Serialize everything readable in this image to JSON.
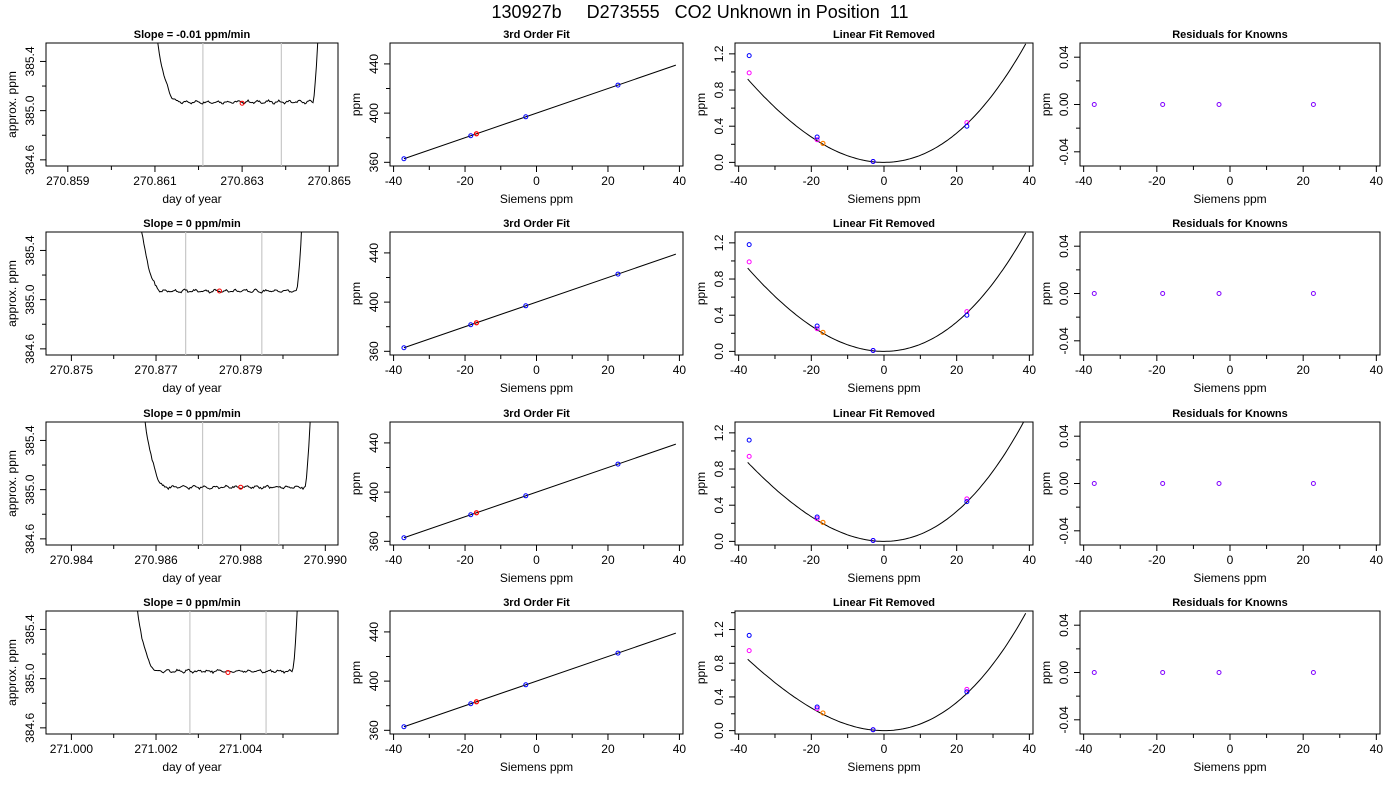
{
  "main_title": "130927b     D273555   CO2 Unknown in Position  11",
  "colors": {
    "line": "#000000",
    "window_line": "#c8c8c8",
    "mean_point": "#ff0000",
    "known_point": "#0000ff",
    "fit_point": "#ff00ff",
    "unknown_point": "#ff8000",
    "residual_point": "#8000ff"
  },
  "chart_data": [
    {
      "type": "line",
      "title": "Slope =  -0.01  ppm/min",
      "xlabel": "day of year",
      "ylabel": "approx. ppm",
      "x_ticks": [
        "270.859",
        "270.861",
        "270.863",
        "270.865"
      ],
      "y_ticks": [
        "384.6",
        "385.0",
        "385.4"
      ],
      "xlim": [
        270.8585,
        270.8652
      ],
      "ylim": [
        384.55,
        385.55
      ],
      "window": [
        270.8621,
        270.8639
      ],
      "trace": {
        "start": 270.8609,
        "end": 270.8648,
        "plateau": 385.07,
        "amp": 0.015
      },
      "mean_point": {
        "x": 270.863,
        "y": 385.06
      }
    },
    {
      "type": "scatter",
      "title": "3rd Order Fit",
      "xlabel": "Siemens ppm",
      "ylabel": "ppm",
      "x_ticks": [
        "-40",
        "-20",
        "0",
        "20",
        "40"
      ],
      "y_ticks": [
        "360",
        "400",
        "440"
      ],
      "xlim": [
        -41,
        41
      ],
      "ylim": [
        357,
        457
      ],
      "knowns": {
        "x": [
          -37.1,
          -18.4,
          -3.0,
          22.8
        ],
        "y": [
          362.9,
          381.6,
          397.0,
          422.8
        ]
      },
      "unknown": {
        "x": [
          -16.8
        ],
        "y": [
          383.2
        ]
      },
      "fit_line": {
        "x": [
          -37.1,
          39.0
        ],
        "y": [
          362.9,
          439.0
        ]
      }
    },
    {
      "type": "scatter",
      "title": "Linear Fit Removed",
      "xlabel": "Siemens ppm",
      "ylabel": "ppm",
      "x_ticks": [
        "-40",
        "-20",
        "0",
        "20",
        "40"
      ],
      "y_ticks": [
        "0.0",
        "0.4",
        "0.8",
        "1.2"
      ],
      "xlim": [
        -41,
        41
      ],
      "ylim": [
        -0.04,
        1.32
      ],
      "curve": {
        "x_range": [
          -37.5,
          39.0
        ],
        "vertex": 0.0,
        "coeff": 0.000756,
        "cubic": 2.7e-06
      },
      "knowns": {
        "x": [
          -37.1,
          -18.4,
          -3.0,
          22.8
        ],
        "y": [
          1.18,
          0.28,
          0.01,
          0.4
        ]
      },
      "fit_points": {
        "x": [
          -37.1,
          -18.4,
          -3.0,
          22.8
        ],
        "y": [
          0.99,
          0.25,
          0.01,
          0.44
        ]
      },
      "unknown": {
        "x": [
          -16.8
        ],
        "y": [
          0.21
        ]
      }
    },
    {
      "type": "scatter",
      "title": "Residuals for Knowns",
      "xlabel": "Siemens ppm",
      "ylabel": "ppm",
      "x_ticks": [
        "-40",
        "-20",
        "0",
        "20",
        "40"
      ],
      "y_ticks": [
        "-0.04",
        "0.00",
        "0.04"
      ],
      "xlim": [
        -41,
        41
      ],
      "ylim": [
        -0.052,
        0.052
      ],
      "residuals": {
        "x": [
          -37.1,
          -18.4,
          -3.0,
          22.8
        ],
        "y": [
          0,
          0,
          0,
          0
        ]
      }
    },
    {
      "type": "line",
      "title": "Slope =  0  ppm/min",
      "xlabel": "day of year",
      "ylabel": "approx. ppm",
      "x_ticks": [
        "270.875",
        "270.877",
        "270.879"
      ],
      "y_ticks": [
        "384.6",
        "385.0",
        "385.4"
      ],
      "xlim": [
        270.8744,
        270.8813
      ],
      "ylim": [
        384.55,
        385.55
      ],
      "window": [
        270.8777,
        270.8795
      ],
      "trace": {
        "start": 270.8765,
        "end": 270.8805,
        "plateau": 385.07,
        "amp": 0.015
      },
      "mean_point": {
        "x": 270.8785,
        "y": 385.07
      }
    },
    {
      "type": "scatter",
      "title": "3rd Order Fit",
      "xlabel": "Siemens ppm",
      "ylabel": "ppm",
      "x_ticks": [
        "-40",
        "-20",
        "0",
        "20",
        "40"
      ],
      "y_ticks": [
        "360",
        "400",
        "440"
      ],
      "xlim": [
        -41,
        41
      ],
      "ylim": [
        357,
        457
      ],
      "knowns": {
        "x": [
          -37.1,
          -18.4,
          -3.0,
          22.8
        ],
        "y": [
          362.9,
          381.6,
          397.0,
          422.8
        ]
      },
      "unknown": {
        "x": [
          -16.8
        ],
        "y": [
          383.2
        ]
      },
      "fit_line": {
        "x": [
          -37.1,
          39.0
        ],
        "y": [
          362.9,
          439.0
        ]
      }
    },
    {
      "type": "scatter",
      "title": "Linear Fit Removed",
      "xlabel": "Siemens ppm",
      "ylabel": "ppm",
      "x_ticks": [
        "-40",
        "-20",
        "0",
        "20",
        "40"
      ],
      "y_ticks": [
        "0.0",
        "0.4",
        "0.8",
        "1.2"
      ],
      "xlim": [
        -41,
        41
      ],
      "ylim": [
        -0.04,
        1.32
      ],
      "curve": {
        "x_range": [
          -37.5,
          39.0
        ],
        "vertex": 0.0,
        "coeff": 0.000756,
        "cubic": 2.7e-06
      },
      "knowns": {
        "x": [
          -37.1,
          -18.4,
          -3.0,
          22.8
        ],
        "y": [
          1.18,
          0.28,
          0.01,
          0.4
        ]
      },
      "fit_points": {
        "x": [
          -37.1,
          -18.4,
          -3.0,
          22.8
        ],
        "y": [
          0.99,
          0.25,
          0.01,
          0.44
        ]
      },
      "unknown": {
        "x": [
          -16.8
        ],
        "y": [
          0.21
        ]
      }
    },
    {
      "type": "scatter",
      "title": "Residuals for Knowns",
      "xlabel": "Siemens ppm",
      "ylabel": "ppm",
      "x_ticks": [
        "-40",
        "-20",
        "0",
        "20",
        "40"
      ],
      "y_ticks": [
        "-0.04",
        "0.00",
        "0.04"
      ],
      "xlim": [
        -41,
        41
      ],
      "ylim": [
        -0.052,
        0.052
      ],
      "residuals": {
        "x": [
          -37.1,
          -18.4,
          -3.0,
          22.8
        ],
        "y": [
          0,
          0,
          0,
          0
        ]
      }
    },
    {
      "type": "line",
      "title": "Slope =  0  ppm/min",
      "xlabel": "day of year",
      "ylabel": "approx. ppm",
      "x_ticks": [
        "270.984",
        "270.986",
        "270.988",
        "270.990"
      ],
      "y_ticks": [
        "384.6",
        "385.0",
        "385.4"
      ],
      "xlim": [
        270.9834,
        270.9903
      ],
      "ylim": [
        384.55,
        385.55
      ],
      "window": [
        270.9871,
        270.9889
      ],
      "trace": {
        "start": 270.9856,
        "end": 270.9897,
        "plateau": 385.02,
        "amp": 0.015
      },
      "mean_point": {
        "x": 270.988,
        "y": 385.02
      }
    },
    {
      "type": "scatter",
      "title": "3rd Order Fit",
      "xlabel": "Siemens ppm",
      "ylabel": "ppm",
      "x_ticks": [
        "-40",
        "-20",
        "0",
        "20",
        "40"
      ],
      "y_ticks": [
        "360",
        "400",
        "440"
      ],
      "xlim": [
        -41,
        41
      ],
      "ylim": [
        357,
        457
      ],
      "knowns": {
        "x": [
          -37.1,
          -18.4,
          -3.0,
          22.8
        ],
        "y": [
          362.9,
          381.6,
          397.0,
          422.8
        ]
      },
      "unknown": {
        "x": [
          -16.8
        ],
        "y": [
          383.2
        ]
      },
      "fit_line": {
        "x": [
          -37.1,
          39.0
        ],
        "y": [
          362.9,
          439.0
        ]
      }
    },
    {
      "type": "scatter",
      "title": "Linear Fit Removed",
      "xlabel": "Siemens ppm",
      "ylabel": "ppm",
      "x_ticks": [
        "-40",
        "-20",
        "0",
        "20",
        "40"
      ],
      "y_ticks": [
        "0.0",
        "0.4",
        "0.8",
        "1.2"
      ],
      "xlim": [
        -41,
        41
      ],
      "ylim": [
        -0.04,
        1.32
      ],
      "curve": {
        "x_range": [
          -37.5,
          39.0
        ],
        "vertex": 0.0,
        "coeff": 0.000756,
        "cubic": 3.6e-06
      },
      "knowns": {
        "x": [
          -37.1,
          -18.4,
          -3.0,
          22.8
        ],
        "y": [
          1.12,
          0.27,
          0.01,
          0.44
        ]
      },
      "fit_points": {
        "x": [
          -37.1,
          -18.4,
          -3.0,
          22.8
        ],
        "y": [
          0.94,
          0.25,
          0.01,
          0.47
        ]
      },
      "unknown": {
        "x": [
          -16.8
        ],
        "y": [
          0.21
        ]
      }
    },
    {
      "type": "scatter",
      "title": "Residuals for Knowns",
      "xlabel": "Siemens ppm",
      "ylabel": "ppm",
      "x_ticks": [
        "-40",
        "-20",
        "0",
        "20",
        "40"
      ],
      "y_ticks": [
        "-0.04",
        "0.00",
        "0.04"
      ],
      "xlim": [
        -41,
        41
      ],
      "ylim": [
        -0.052,
        0.052
      ],
      "residuals": {
        "x": [
          -37.1,
          -18.4,
          -3.0,
          22.8
        ],
        "y": [
          0,
          0,
          0,
          0
        ]
      }
    },
    {
      "type": "line",
      "title": "Slope =  0  ppm/min",
      "xlabel": "day of year",
      "ylabel": "approx. ppm",
      "x_ticks": [
        "271.000",
        "271.002",
        "271.004"
      ],
      "y_ticks": [
        "384.6",
        "385.0",
        "385.4"
      ],
      "xlim": [
        270.9994,
        271.0063
      ],
      "ylim": [
        384.55,
        385.55
      ],
      "window": [
        271.0028,
        271.0046
      ],
      "trace": {
        "start": 271.0014,
        "end": 271.0054,
        "plateau": 385.06,
        "amp": 0.015
      },
      "mean_point": {
        "x": 271.0037,
        "y": 385.05
      }
    },
    {
      "type": "scatter",
      "title": "3rd Order Fit",
      "xlabel": "Siemens ppm",
      "ylabel": "ppm",
      "x_ticks": [
        "-40",
        "-20",
        "0",
        "20",
        "40"
      ],
      "y_ticks": [
        "360",
        "400",
        "440"
      ],
      "xlim": [
        -41,
        41
      ],
      "ylim": [
        357,
        457
      ],
      "knowns": {
        "x": [
          -37.1,
          -18.4,
          -3.0,
          22.8
        ],
        "y": [
          362.9,
          381.6,
          397.0,
          422.8
        ]
      },
      "unknown": {
        "x": [
          -16.8
        ],
        "y": [
          383.2
        ]
      },
      "fit_line": {
        "x": [
          -37.1,
          39.0
        ],
        "y": [
          362.9,
          439.0
        ]
      }
    },
    {
      "type": "scatter",
      "title": "Linear Fit Removed",
      "xlabel": "Siemens ppm",
      "ylabel": "ppm",
      "x_ticks": [
        "-40",
        "-20",
        "0",
        "20",
        "40"
      ],
      "y_ticks": [
        "0.0",
        "0.4",
        "0.8",
        "1.2"
      ],
      "xlim": [
        -41,
        41
      ],
      "ylim": [
        -0.04,
        1.42
      ],
      "curve": {
        "x_range": [
          -37.5,
          39.0
        ],
        "vertex": 0.0,
        "coeff": 0.000756,
        "cubic": 4.1e-06
      },
      "knowns": {
        "x": [
          -37.1,
          -18.4,
          -3.0,
          22.8
        ],
        "y": [
          1.13,
          0.28,
          0.01,
          0.46
        ]
      },
      "fit_points": {
        "x": [
          -37.1,
          -18.4,
          -3.0,
          22.8
        ],
        "y": [
          0.95,
          0.26,
          0.01,
          0.49
        ]
      },
      "unknown": {
        "x": [
          -16.8
        ],
        "y": [
          0.21
        ]
      }
    },
    {
      "type": "scatter",
      "title": "Residuals for Knowns",
      "xlabel": "Siemens ppm",
      "ylabel": "ppm",
      "x_ticks": [
        "-40",
        "-20",
        "0",
        "20",
        "40"
      ],
      "y_ticks": [
        "-0.04",
        "0.00",
        "0.04"
      ],
      "xlim": [
        -41,
        41
      ],
      "ylim": [
        -0.052,
        0.052
      ],
      "residuals": {
        "x": [
          -37.1,
          -18.4,
          -3.0,
          22.8
        ],
        "y": [
          0,
          0,
          0,
          0
        ]
      }
    }
  ]
}
